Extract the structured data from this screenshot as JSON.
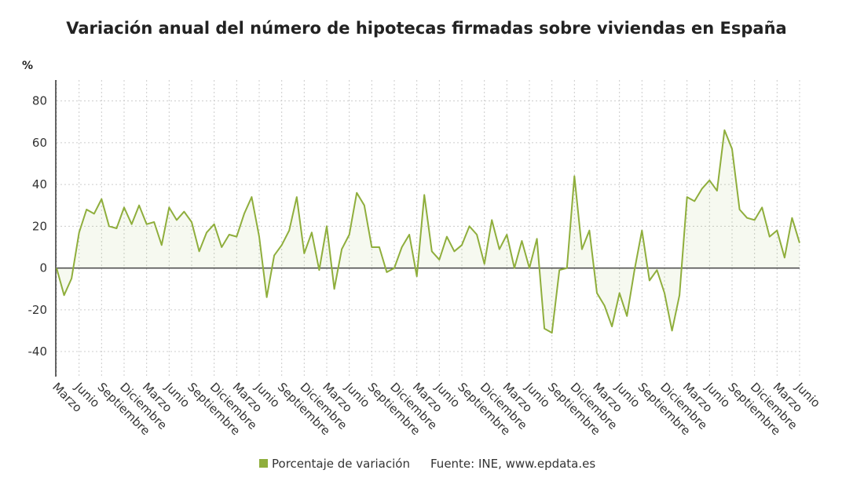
{
  "chart_data": {
    "type": "line",
    "title": "Variación anual del número de hipotecas firmadas sobre viviendas en España",
    "y_label": "%",
    "source": "Fuente: INE, www.epdata.es",
    "categories": [
      "Marzo",
      null,
      null,
      "Junio",
      null,
      null,
      "Septiembre",
      null,
      null,
      "Diciembre",
      null,
      null,
      "Marzo",
      null,
      null,
      "Junio",
      null,
      null,
      "Septiembre",
      null,
      null,
      "Diciembre",
      null,
      null,
      "Marzo",
      null,
      null,
      "Junio",
      null,
      null,
      "Septiembre",
      null,
      null,
      "Diciembre",
      null,
      null,
      "Marzo",
      null,
      null,
      "Junio",
      null,
      null,
      "Septiembre",
      null,
      null,
      "Diciembre",
      null,
      null,
      "Marzo",
      null,
      null,
      "Junio",
      null,
      null,
      "Septiembre",
      null,
      null,
      "Diciembre",
      null,
      null,
      "Marzo",
      null,
      null,
      "Junio",
      null,
      null,
      "Septiembre",
      null,
      null,
      "Diciembre",
      null,
      null,
      "Marzo",
      null,
      null,
      "Junio",
      null,
      null,
      "Septiembre",
      null,
      null,
      "Diciembre",
      null,
      null,
      "Marzo",
      null,
      null,
      "Junio",
      null,
      null,
      "Septiembre",
      null,
      null,
      "Diciembre",
      null,
      null,
      "Marzo",
      null,
      null,
      "Junio"
    ],
    "series": [
      {
        "name": "Porcentaje de variación",
        "color": "#8fae3c",
        "values": [
          0,
          -13,
          -5,
          17,
          28,
          26,
          33,
          20,
          19,
          29,
          21,
          30,
          21,
          22,
          11,
          29,
          23,
          27,
          22,
          8,
          17,
          21,
          10,
          16,
          15,
          26,
          34,
          15,
          -14,
          6,
          11,
          18,
          34,
          7,
          17,
          -1,
          20,
          -10,
          9,
          16,
          36,
          30,
          10,
          10,
          -2,
          0,
          10,
          16,
          -4,
          35,
          8,
          4,
          15,
          8,
          11,
          20,
          16,
          2,
          23,
          9,
          16,
          0,
          13,
          0,
          14,
          -29,
          -31,
          -1,
          0,
          44,
          9,
          18,
          -12,
          -18,
          -28,
          -12,
          -23,
          -1,
          18,
          -6,
          -1,
          -12,
          -30,
          -13,
          34,
          32,
          38,
          42,
          37,
          66,
          57,
          28,
          24,
          23,
          29,
          15,
          18,
          5,
          24,
          12
        ]
      }
    ],
    "ylim": [
      -52,
      90
    ],
    "yticks": [
      -40,
      -20,
      0,
      20,
      40,
      60,
      80
    ],
    "grid": true
  }
}
